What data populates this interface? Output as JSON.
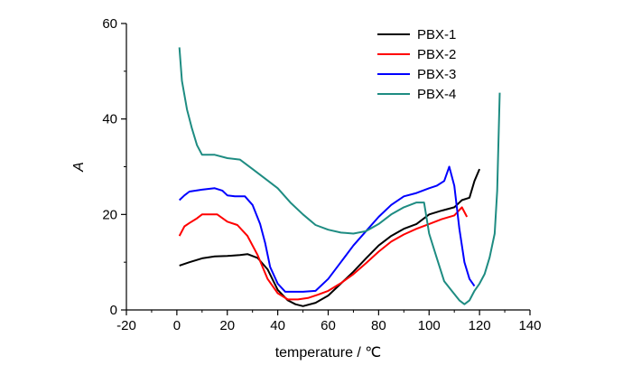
{
  "chart_data": {
    "type": "line",
    "xlabel": "temperature / ℃",
    "ylabel": "A",
    "xlim": [
      -20,
      140
    ],
    "ylim": [
      0,
      60
    ],
    "xticks": [
      -20,
      0,
      20,
      40,
      60,
      80,
      100,
      120,
      140
    ],
    "yticks": [
      0,
      20,
      40,
      60
    ],
    "legend_position": "top-right",
    "series": [
      {
        "name": "PBX-1",
        "color": "#000000",
        "x": [
          1,
          5,
          10,
          15,
          20,
          25,
          28,
          32,
          36,
          40,
          44,
          47,
          50,
          55,
          60,
          65,
          70,
          75,
          80,
          85,
          90,
          95,
          100,
          105,
          110,
          113,
          116,
          118,
          120
        ],
        "y": [
          9.3,
          10,
          10.8,
          11.2,
          11.3,
          11.5,
          11.7,
          10.9,
          8.5,
          4.2,
          2,
          1.2,
          0.8,
          1.5,
          3,
          5.5,
          8,
          10.8,
          13.5,
          15.5,
          17,
          18,
          20,
          20.8,
          21.5,
          23,
          23.5,
          27,
          29.5
        ]
      },
      {
        "name": "PBX-2",
        "color": "#ff0000",
        "x": [
          1,
          3,
          5,
          8,
          10,
          13,
          16,
          20,
          24,
          28,
          32,
          36,
          40,
          44,
          48,
          52,
          56,
          60,
          65,
          70,
          75,
          80,
          85,
          90,
          95,
          100,
          105,
          110,
          113,
          115
        ],
        "y": [
          15.5,
          17.5,
          18.2,
          19.2,
          20,
          20,
          20,
          18.5,
          17.8,
          15.5,
          11.5,
          6.5,
          3.5,
          2.2,
          2.2,
          2.5,
          3.2,
          4,
          5.6,
          7.5,
          9.8,
          12.2,
          14.3,
          15.8,
          17,
          18,
          19,
          19.8,
          21.5,
          19.5
        ]
      },
      {
        "name": "PBX-3",
        "color": "#0000ff",
        "x": [
          1,
          3,
          5,
          10,
          15,
          18,
          20,
          23,
          27,
          30,
          33,
          35,
          37,
          40,
          43,
          46,
          50,
          55,
          60,
          65,
          70,
          75,
          80,
          85,
          90,
          95,
          100,
          103,
          106,
          108,
          110,
          112,
          114,
          116,
          118
        ],
        "y": [
          23,
          24,
          24.8,
          25.2,
          25.5,
          25,
          24,
          23.8,
          23.8,
          22,
          18,
          14,
          9,
          5.5,
          3.8,
          3.8,
          3.8,
          4,
          6.5,
          10,
          13.5,
          16.5,
          19.5,
          22,
          23.8,
          24.5,
          25.5,
          26,
          27,
          30,
          26,
          17,
          10,
          6.5,
          5
        ]
      },
      {
        "name": "PBX-4",
        "color": "#1e8c82",
        "x": [
          1,
          2,
          4,
          6,
          8,
          10,
          15,
          20,
          25,
          30,
          35,
          40,
          45,
          50,
          55,
          60,
          65,
          70,
          75,
          80,
          85,
          90,
          95,
          98,
          100,
          103,
          106,
          109,
          112,
          114,
          116,
          118,
          120,
          122,
          124,
          126,
          127,
          128
        ],
        "y": [
          55,
          48,
          42,
          38,
          34.5,
          32.5,
          32.5,
          31.8,
          31.5,
          29.5,
          27.5,
          25.5,
          22.5,
          20,
          17.8,
          16.8,
          16.2,
          16,
          16.5,
          18,
          20,
          21.5,
          22.5,
          22.5,
          16,
          11,
          6,
          4,
          2,
          1.2,
          2,
          4,
          5.5,
          7.5,
          11,
          16,
          25,
          45.5
        ]
      }
    ]
  }
}
